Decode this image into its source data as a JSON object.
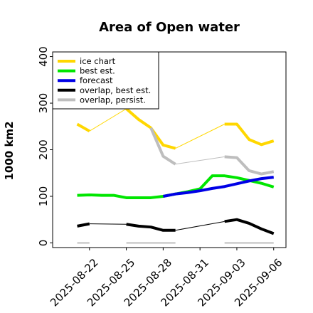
{
  "chart_data": {
    "type": "line",
    "title": "Area of Open water",
    "ylabel": "1000 km2",
    "xlabel": "",
    "ylim": [
      -10,
      410
    ],
    "yticks": [
      0,
      100,
      200,
      300,
      400
    ],
    "y_tick_labels": [
      "0",
      "100",
      "200",
      "300",
      "400"
    ],
    "xlim": [
      "2025-08-19",
      "2025-09-07"
    ],
    "x_ticks": [
      "2025-08-22",
      "2025-08-25",
      "2025-08-28",
      "2025-08-31",
      "2025-09-03",
      "2025-09-06"
    ],
    "x_tick_labels": [
      "2025-08-22",
      "2025-08-25",
      "2025-08-28",
      "2025-08-31",
      "2025-09-03",
      "2025-09-06"
    ],
    "highlighted_tick": "2025-08-28",
    "highlight_color": "#228B22",
    "grid": false,
    "legend_position": "top-left",
    "series": [
      {
        "name": "ice chart",
        "color": "#FFD700",
        "segments": [
          {
            "x": [
              "2025-08-21",
              "2025-08-22"
            ],
            "y": [
              255,
              240
            ],
            "style": "thick"
          },
          {
            "x": [
              "2025-08-22",
              "2025-08-25"
            ],
            "y": [
              240,
              288
            ],
            "style": "thin"
          },
          {
            "x": [
              "2025-08-25",
              "2025-08-26",
              "2025-08-27",
              "2025-08-28",
              "2025-08-29"
            ],
            "y": [
              288,
              265,
              247,
              210,
              203
            ],
            "style": "thick"
          },
          {
            "x": [
              "2025-08-29",
              "2025-09-02"
            ],
            "y": [
              203,
              255
            ],
            "style": "thin"
          },
          {
            "x": [
              "2025-09-02",
              "2025-09-03",
              "2025-09-04",
              "2025-09-05",
              "2025-09-06"
            ],
            "y": [
              255,
              255,
              222,
              211,
              219
            ],
            "style": "thick"
          }
        ]
      },
      {
        "name": "best est.",
        "color": "#00E600",
        "segments": [
          {
            "x": [
              "2025-08-21",
              "2025-08-22",
              "2025-08-23",
              "2025-08-24",
              "2025-08-25",
              "2025-08-26",
              "2025-08-27",
              "2025-08-28",
              "2025-08-29",
              "2025-08-30",
              "2025-08-31",
              "2025-09-01",
              "2025-09-02",
              "2025-09-03",
              "2025-09-04",
              "2025-09-05",
              "2025-09-06"
            ],
            "y": [
              102,
              103,
              102,
              102,
              97,
              97,
              97,
              100,
              105,
              110,
              116,
              144,
              144,
              140,
              134,
              128,
              120
            ],
            "style": "thick"
          }
        ]
      },
      {
        "name": "forecast",
        "color": "#0000E6",
        "segments": [
          {
            "x": [
              "2025-08-28",
              "2025-08-29",
              "2025-08-30",
              "2025-08-31",
              "2025-09-01",
              "2025-09-02",
              "2025-09-03",
              "2025-09-04",
              "2025-09-05",
              "2025-09-06"
            ],
            "y": [
              100,
              105,
              108,
              112,
              117,
              121,
              127,
              133,
              138,
              141
            ],
            "style": "thick"
          }
        ]
      },
      {
        "name": "overlap, best est.",
        "color": "#000000",
        "segments": [
          {
            "x": [
              "2025-08-21",
              "2025-08-22"
            ],
            "y": [
              36,
              41
            ],
            "style": "thick"
          },
          {
            "x": [
              "2025-08-22",
              "2025-08-25"
            ],
            "y": [
              41,
              40
            ],
            "style": "thin"
          },
          {
            "x": [
              "2025-08-25",
              "2025-08-26",
              "2025-08-27",
              "2025-08-28",
              "2025-08-29"
            ],
            "y": [
              40,
              36,
              34,
              27,
              27
            ],
            "style": "thick"
          },
          {
            "x": [
              "2025-08-29",
              "2025-09-02"
            ],
            "y": [
              27,
              46
            ],
            "style": "thin"
          },
          {
            "x": [
              "2025-09-02",
              "2025-09-03",
              "2025-09-04",
              "2025-09-05",
              "2025-09-06"
            ],
            "y": [
              46,
              50,
              42,
              30,
              20
            ],
            "style": "thick"
          }
        ]
      },
      {
        "name": "overlap, persist.",
        "color": "#BEBEBE",
        "segments": [
          {
            "x": [
              "2025-08-27",
              "2025-08-28",
              "2025-08-29"
            ],
            "y": [
              247,
              186,
              169
            ],
            "style": "thick"
          },
          {
            "x": [
              "2025-08-29",
              "2025-09-02"
            ],
            "y": [
              169,
              185
            ],
            "style": "thin"
          },
          {
            "x": [
              "2025-09-02",
              "2025-09-03",
              "2025-09-04",
              "2025-09-05",
              "2025-09-06"
            ],
            "y": [
              185,
              183,
              155,
              148,
              153
            ],
            "style": "thick"
          },
          {
            "x": [
              "2025-08-21",
              "2025-08-22"
            ],
            "y": [
              0,
              0
            ],
            "style": "medium"
          },
          {
            "x": [
              "2025-08-25",
              "2025-08-29"
            ],
            "y": [
              0,
              0
            ],
            "style": "medium"
          },
          {
            "x": [
              "2025-09-02",
              "2025-09-06"
            ],
            "y": [
              0,
              0
            ],
            "style": "medium"
          }
        ]
      }
    ]
  }
}
